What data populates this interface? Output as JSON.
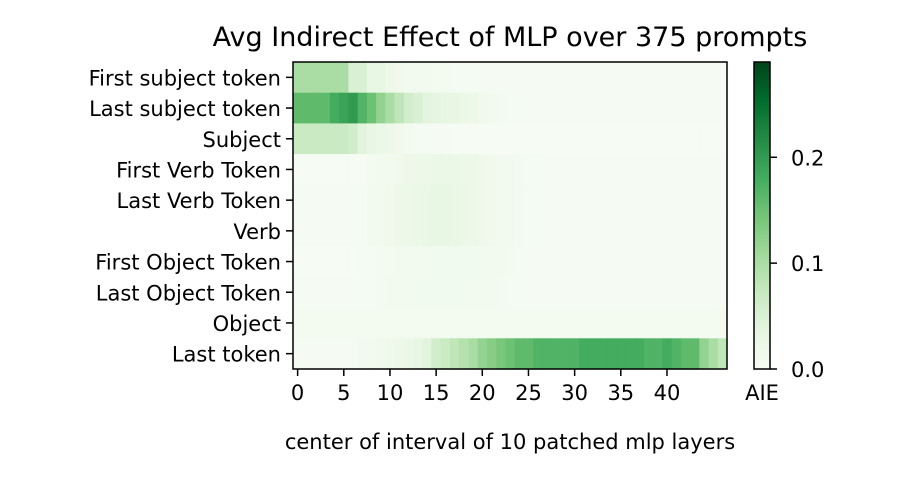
{
  "chart_data": {
    "type": "heatmap",
    "title": "Avg Indirect Effect of MLP over 375 prompts",
    "xlabel": "center of interval of 10 patched mlp layers",
    "ylabel": "",
    "x_ticks": [
      "0",
      "5",
      "10",
      "15",
      "20",
      "25",
      "30",
      "35",
      "40"
    ],
    "x_tick_values": [
      0,
      5,
      10,
      15,
      20,
      25,
      30,
      35,
      40
    ],
    "n_columns": 47,
    "rows": [
      "First subject token",
      "Last subject token",
      "Subject",
      "First Verb Token",
      "Last Verb Token",
      "Verb",
      "First Object Token",
      "Last Object Token",
      "Object",
      "Last token"
    ],
    "colorbar": {
      "label": "AIE",
      "ticks": [
        "0.0",
        "0.1",
        "0.2"
      ],
      "tick_values": [
        0.0,
        0.1,
        0.2
      ],
      "range": [
        0,
        0.29
      ],
      "colormap": "Greens"
    },
    "values": [
      [
        0.1,
        0.1,
        0.1,
        0.1,
        0.1,
        0.1,
        0.05,
        0.05,
        0.03,
        0.03,
        0.02,
        0.015,
        0.012,
        0.01,
        0.01,
        0.008,
        0.008,
        0.006,
        0.006,
        0.006,
        0.005,
        0.005,
        0.005,
        0.005,
        0.005,
        0.005,
        0.005,
        0.004,
        0.004,
        0.004,
        0.004,
        0.004,
        0.004,
        0.004,
        0.004,
        0.004,
        0.004,
        0.004,
        0.004,
        0.004,
        0.004,
        0.004,
        0.004,
        0.004,
        0.004,
        0.004,
        0.004
      ],
      [
        0.16,
        0.16,
        0.16,
        0.16,
        0.18,
        0.19,
        0.2,
        0.17,
        0.15,
        0.12,
        0.1,
        0.08,
        0.06,
        0.05,
        0.04,
        0.035,
        0.03,
        0.03,
        0.025,
        0.02,
        0.015,
        0.01,
        0.008,
        0.006,
        0.005,
        0.005,
        0.005,
        0.005,
        0.005,
        0.005,
        0.005,
        0.005,
        0.005,
        0.005,
        0.004,
        0.004,
        0.004,
        0.004,
        0.004,
        0.004,
        0.004,
        0.004,
        0.004,
        0.004,
        0.004,
        0.004,
        0.004
      ],
      [
        0.07,
        0.07,
        0.07,
        0.07,
        0.07,
        0.07,
        0.06,
        0.04,
        0.03,
        0.025,
        0.02,
        0.015,
        0.008,
        0.006,
        0.005,
        0.004,
        0.004,
        0.003,
        0.003,
        0.003,
        0.003,
        0.003,
        0.003,
        0.003,
        0.003,
        0.003,
        0.003,
        0.003,
        0.003,
        0.003,
        0.003,
        0.003,
        0.003,
        0.003,
        0.003,
        0.003,
        0.003,
        0.003,
        0.003,
        0.003,
        0.003,
        0.003,
        0.003,
        0.003,
        0.003,
        0.003,
        0.003
      ],
      [
        0.003,
        0.003,
        0.003,
        0.003,
        0.003,
        0.003,
        0.003,
        0.003,
        0.008,
        0.01,
        0.012,
        0.015,
        0.02,
        0.02,
        0.022,
        0.025,
        0.025,
        0.025,
        0.022,
        0.02,
        0.018,
        0.015,
        0.012,
        0.01,
        0.008,
        0.006,
        0.005,
        0.004,
        0.004,
        0.004,
        0.004,
        0.004,
        0.004,
        0.004,
        0.004,
        0.004,
        0.004,
        0.004,
        0.004,
        0.004,
        0.004,
        0.004,
        0.004,
        0.004,
        0.004,
        0.004,
        0.004
      ],
      [
        0.004,
        0.004,
        0.004,
        0.004,
        0.004,
        0.004,
        0.004,
        0.006,
        0.01,
        0.012,
        0.015,
        0.02,
        0.022,
        0.025,
        0.028,
        0.03,
        0.03,
        0.028,
        0.025,
        0.022,
        0.018,
        0.015,
        0.012,
        0.01,
        0.008,
        0.006,
        0.005,
        0.004,
        0.004,
        0.004,
        0.004,
        0.004,
        0.004,
        0.004,
        0.004,
        0.004,
        0.004,
        0.004,
        0.004,
        0.004,
        0.004,
        0.004,
        0.004,
        0.004,
        0.004,
        0.004,
        0.004
      ],
      [
        0.004,
        0.004,
        0.004,
        0.004,
        0.004,
        0.004,
        0.004,
        0.006,
        0.01,
        0.012,
        0.015,
        0.02,
        0.022,
        0.025,
        0.028,
        0.03,
        0.03,
        0.028,
        0.025,
        0.022,
        0.018,
        0.015,
        0.012,
        0.01,
        0.008,
        0.006,
        0.005,
        0.004,
        0.004,
        0.004,
        0.004,
        0.004,
        0.004,
        0.004,
        0.004,
        0.004,
        0.004,
        0.004,
        0.004,
        0.004,
        0.004,
        0.004,
        0.004,
        0.004,
        0.004,
        0.004,
        0.004
      ],
      [
        0.003,
        0.003,
        0.003,
        0.003,
        0.003,
        0.003,
        0.003,
        0.004,
        0.006,
        0.008,
        0.008,
        0.01,
        0.01,
        0.01,
        0.012,
        0.012,
        0.012,
        0.012,
        0.012,
        0.012,
        0.012,
        0.01,
        0.01,
        0.008,
        0.006,
        0.005,
        0.004,
        0.004,
        0.004,
        0.004,
        0.004,
        0.004,
        0.004,
        0.004,
        0.004,
        0.004,
        0.004,
        0.004,
        0.004,
        0.004,
        0.004,
        0.004,
        0.004,
        0.004,
        0.004,
        0.004,
        0.004
      ],
      [
        0.004,
        0.004,
        0.004,
        0.004,
        0.004,
        0.004,
        0.004,
        0.005,
        0.006,
        0.008,
        0.01,
        0.01,
        0.012,
        0.012,
        0.012,
        0.012,
        0.012,
        0.012,
        0.012,
        0.012,
        0.01,
        0.01,
        0.008,
        0.006,
        0.005,
        0.005,
        0.004,
        0.004,
        0.004,
        0.004,
        0.004,
        0.004,
        0.004,
        0.004,
        0.004,
        0.004,
        0.004,
        0.004,
        0.004,
        0.004,
        0.004,
        0.004,
        0.004,
        0.004,
        0.004,
        0.004,
        0.004
      ],
      [
        0.008,
        0.008,
        0.008,
        0.008,
        0.008,
        0.008,
        0.008,
        0.008,
        0.008,
        0.008,
        0.008,
        0.008,
        0.008,
        0.008,
        0.008,
        0.008,
        0.008,
        0.008,
        0.008,
        0.008,
        0.008,
        0.008,
        0.008,
        0.008,
        0.008,
        0.008,
        0.008,
        0.008,
        0.008,
        0.008,
        0.008,
        0.008,
        0.008,
        0.008,
        0.008,
        0.008,
        0.008,
        0.008,
        0.008,
        0.008,
        0.008,
        0.008,
        0.008,
        0.008,
        0.008,
        0.008,
        0.008
      ],
      [
        0.005,
        0.005,
        0.005,
        0.005,
        0.005,
        0.005,
        0.005,
        0.01,
        0.012,
        0.015,
        0.018,
        0.02,
        0.025,
        0.03,
        0.04,
        0.06,
        0.07,
        0.08,
        0.09,
        0.1,
        0.12,
        0.13,
        0.14,
        0.15,
        0.16,
        0.16,
        0.17,
        0.17,
        0.17,
        0.17,
        0.17,
        0.18,
        0.18,
        0.18,
        0.18,
        0.18,
        0.18,
        0.18,
        0.17,
        0.17,
        0.18,
        0.17,
        0.16,
        0.16,
        0.12,
        0.1,
        0.08
      ]
    ]
  }
}
